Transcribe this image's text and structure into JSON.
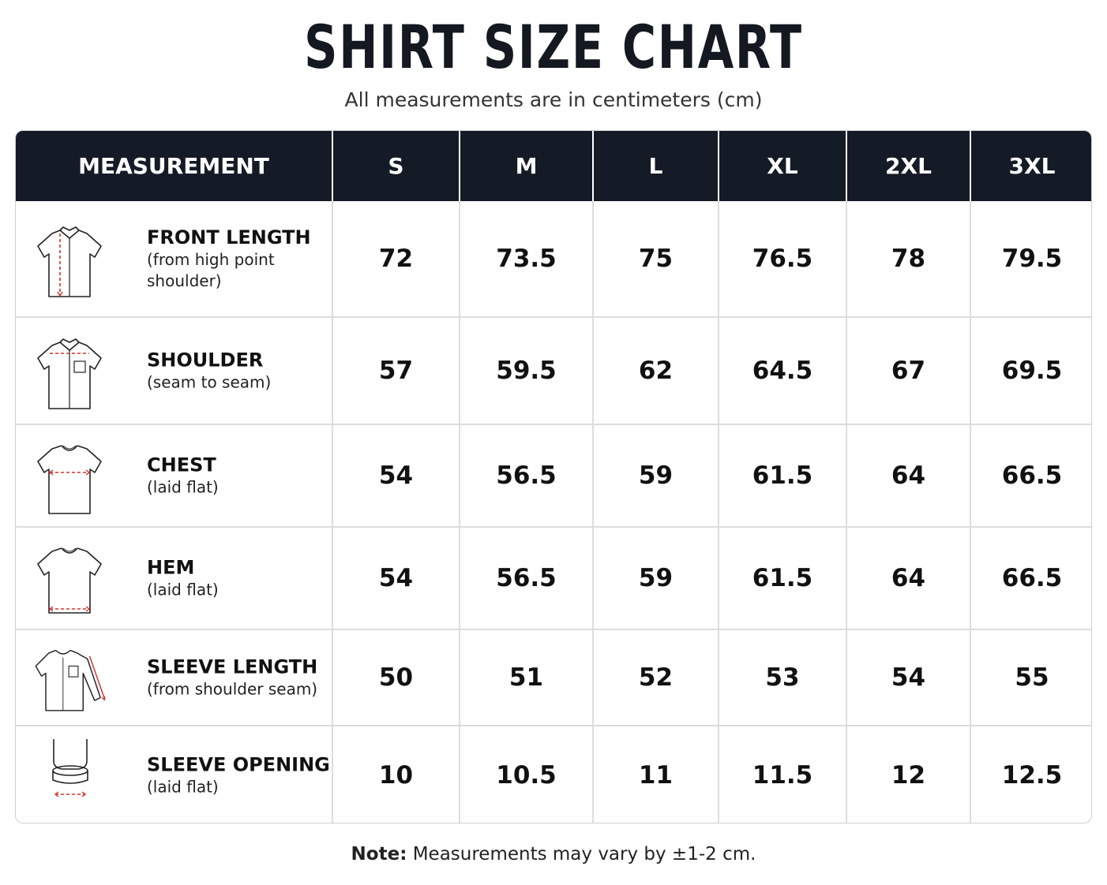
{
  "title": "SHIRT SIZE CHART",
  "subtitle": "All measurements are in centimeters (cm)",
  "table": {
    "headers": [
      "MEASUREMENT",
      "S",
      "M",
      "L",
      "XL",
      "2XL",
      "3XL"
    ],
    "rows": [
      {
        "name": "FRONT LENGTH",
        "desc": "(from high point shoulder)",
        "icon": "shirt-front-length-icon",
        "values": [
          "72",
          "73.5",
          "75",
          "76.5",
          "78",
          "79.5"
        ]
      },
      {
        "name": "SHOULDER",
        "desc": "(seam to seam)",
        "icon": "shirt-shoulder-icon",
        "values": [
          "57",
          "59.5",
          "62",
          "64.5",
          "67",
          "69.5"
        ]
      },
      {
        "name": "CHEST",
        "desc": "(laid flat)",
        "icon": "shirt-chest-icon",
        "values": [
          "54",
          "56.5",
          "59",
          "61.5",
          "64",
          "66.5"
        ]
      },
      {
        "name": "HEM",
        "desc": "(laid flat)",
        "icon": "shirt-hem-icon",
        "values": [
          "54",
          "56.5",
          "59",
          "61.5",
          "64",
          "66.5"
        ]
      },
      {
        "name": "SLEEVE LENGTH",
        "desc": "(from shoulder seam)",
        "icon": "shirt-sleeve-length-icon",
        "values": [
          "50",
          "51",
          "52",
          "53",
          "54",
          "55"
        ]
      },
      {
        "name": "SLEEVE OPENING",
        "desc": "(laid flat)",
        "icon": "sleeve-opening-icon",
        "values": [
          "10",
          "10.5",
          "11",
          "11.5",
          "12",
          "12.5"
        ]
      }
    ]
  },
  "note": {
    "label": "Note:",
    "text": " Measurements may vary by ±1-2 cm."
  },
  "colors": {
    "header_bg": "#141b26",
    "guide_line": "#d9302c",
    "border": "#dcdcdc"
  }
}
